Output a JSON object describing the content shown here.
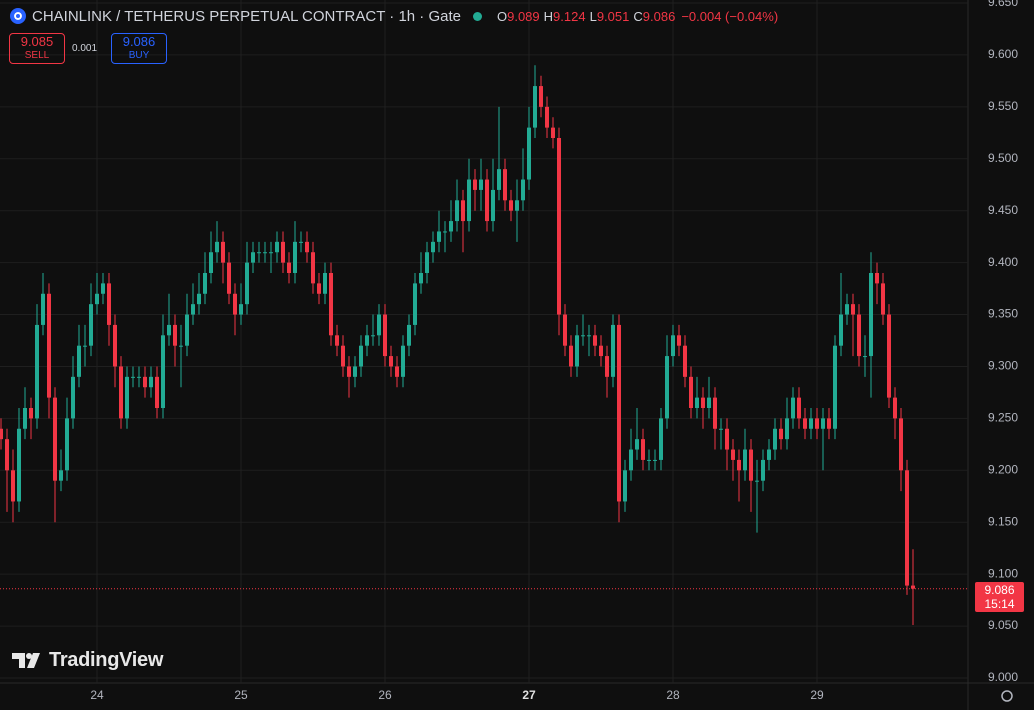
{
  "header": {
    "title": "CHAINLINK / TETHERUS PERPETUAL CONTRACT · 1h · Gate",
    "ohlc_labels": [
      "O",
      "H",
      "L",
      "C"
    ],
    "change": "−0.004 (−0.04%)",
    "sell_price": 9.085,
    "sell_label": "SELL",
    "spread": 0.001,
    "buy_price": 9.086,
    "buy_label": "BUY",
    "countdown": "15:14",
    "logo": "TradingView"
  },
  "chart_data": {
    "type": "candlestick",
    "grid": true,
    "up_color": "#22ab94",
    "down_color": "#f23645",
    "categories": [
      null,
      null,
      null,
      null,
      null,
      null,
      null,
      null,
      null,
      null,
      null,
      null,
      null,
      null,
      null,
      null,
      "24",
      null,
      null,
      null,
      null,
      null,
      null,
      null,
      null,
      null,
      null,
      null,
      null,
      null,
      null,
      null,
      null,
      null,
      null,
      null,
      null,
      null,
      null,
      null,
      "25",
      null,
      null,
      null,
      null,
      null,
      null,
      null,
      null,
      null,
      null,
      null,
      null,
      null,
      null,
      null,
      null,
      null,
      null,
      null,
      null,
      null,
      null,
      null,
      "26",
      null,
      null,
      null,
      null,
      null,
      null,
      null,
      null,
      null,
      null,
      null,
      null,
      null,
      null,
      null,
      null,
      null,
      null,
      null,
      null,
      null,
      null,
      null,
      "27",
      null,
      null,
      null,
      null,
      null,
      null,
      null,
      null,
      null,
      null,
      null,
      null,
      null,
      null,
      null,
      null,
      null,
      null,
      null,
      null,
      null,
      null,
      null,
      "28",
      null,
      null,
      null,
      null,
      null,
      null,
      null,
      null,
      null,
      null,
      null,
      null,
      null,
      null,
      null,
      null,
      null,
      null,
      null,
      null,
      null,
      null,
      null,
      "29",
      null,
      null,
      null,
      null,
      null,
      null,
      null,
      null,
      null,
      null,
      null,
      null,
      null,
      null,
      null,
      null
    ],
    "open": [
      9.24,
      9.23,
      9.2,
      9.17,
      9.24,
      9.26,
      9.25,
      9.34,
      9.37,
      9.27,
      9.19,
      9.2,
      9.25,
      9.29,
      9.32,
      9.32,
      9.36,
      9.37,
      9.38,
      9.34,
      9.3,
      9.25,
      9.29,
      9.29,
      9.29,
      9.28,
      9.29,
      9.26,
      9.33,
      9.34,
      9.32,
      9.32,
      9.35,
      9.36,
      9.37,
      9.39,
      9.41,
      9.42,
      9.4,
      9.37,
      9.35,
      9.36,
      9.4,
      9.41,
      9.41,
      9.41,
      9.41,
      9.42,
      9.4,
      9.39,
      9.42,
      9.42,
      9.41,
      9.38,
      9.37,
      9.39,
      9.33,
      9.32,
      9.3,
      9.29,
      9.3,
      9.32,
      9.33,
      9.33,
      9.35,
      9.31,
      9.3,
      9.29,
      9.32,
      9.34,
      9.38,
      9.39,
      9.41,
      9.42,
      9.43,
      9.43,
      9.44,
      9.46,
      9.44,
      9.48,
      9.47,
      9.48,
      9.44,
      9.47,
      9.49,
      9.46,
      9.45,
      9.46,
      9.48,
      9.53,
      9.57,
      9.55,
      9.53,
      9.52,
      9.35,
      9.32,
      9.3,
      9.33,
      9.33,
      9.33,
      9.32,
      9.31,
      9.29,
      9.34,
      9.17,
      9.2,
      9.22,
      9.23,
      9.21,
      9.21,
      9.21,
      9.25,
      9.31,
      9.33,
      9.32,
      9.29,
      9.26,
      9.27,
      9.26,
      9.27,
      9.24,
      9.24,
      9.22,
      9.21,
      9.2,
      9.22,
      9.19,
      9.19,
      9.21,
      9.22,
      9.24,
      9.23,
      9.25,
      9.27,
      9.25,
      9.24,
      9.25,
      9.24,
      9.25,
      9.24,
      9.32,
      9.35,
      9.36,
      9.35,
      9.31,
      9.31,
      9.39,
      9.38,
      9.35,
      9.27,
      9.25,
      9.2,
      9.089
    ],
    "high": [
      9.25,
      9.24,
      9.22,
      9.26,
      9.28,
      9.27,
      9.36,
      9.39,
      9.38,
      9.28,
      9.22,
      9.27,
      9.31,
      9.34,
      9.34,
      9.38,
      9.39,
      9.39,
      9.39,
      9.35,
      9.31,
      9.3,
      9.3,
      9.3,
      9.3,
      9.3,
      9.3,
      9.35,
      9.37,
      9.35,
      9.34,
      9.37,
      9.38,
      9.39,
      9.41,
      9.43,
      9.44,
      9.43,
      9.41,
      9.38,
      9.38,
      9.42,
      9.42,
      9.42,
      9.42,
      9.42,
      9.43,
      9.43,
      9.41,
      9.44,
      9.43,
      9.43,
      9.42,
      9.39,
      9.4,
      9.4,
      9.34,
      9.33,
      9.31,
      9.31,
      9.33,
      9.34,
      9.35,
      9.36,
      9.36,
      9.32,
      9.31,
      9.33,
      9.35,
      9.39,
      9.41,
      9.42,
      9.43,
      9.45,
      9.44,
      9.46,
      9.48,
      9.47,
      9.5,
      9.49,
      9.5,
      9.49,
      9.5,
      9.55,
      9.5,
      9.47,
      9.48,
      9.51,
      9.55,
      9.59,
      9.58,
      9.56,
      9.54,
      9.53,
      9.36,
      9.33,
      9.34,
      9.35,
      9.34,
      9.34,
      9.33,
      9.32,
      9.35,
      9.35,
      9.21,
      9.24,
      9.26,
      9.24,
      9.22,
      9.22,
      9.26,
      9.33,
      9.34,
      9.34,
      9.33,
      9.3,
      9.29,
      9.28,
      9.29,
      9.28,
      9.25,
      9.25,
      9.23,
      9.22,
      9.24,
      9.23,
      9.21,
      9.22,
      9.23,
      9.25,
      9.25,
      9.27,
      9.28,
      9.28,
      9.26,
      9.26,
      9.26,
      9.26,
      9.26,
      9.33,
      9.39,
      9.37,
      9.37,
      9.36,
      9.33,
      9.41,
      9.4,
      9.39,
      9.36,
      9.28,
      9.26,
      9.21,
      9.124
    ],
    "low": [
      9.22,
      9.16,
      9.15,
      9.16,
      9.23,
      9.23,
      9.24,
      9.33,
      9.25,
      9.15,
      9.18,
      9.19,
      9.24,
      9.28,
      9.3,
      9.31,
      9.35,
      9.36,
      9.32,
      9.28,
      9.24,
      9.24,
      9.28,
      9.28,
      9.27,
      9.27,
      9.25,
      9.25,
      9.32,
      9.3,
      9.28,
      9.31,
      9.34,
      9.35,
      9.36,
      9.38,
      9.4,
      9.38,
      9.36,
      9.33,
      9.34,
      9.35,
      9.39,
      9.4,
      9.4,
      9.39,
      9.4,
      9.39,
      9.38,
      9.38,
      9.41,
      9.4,
      9.37,
      9.36,
      9.36,
      9.32,
      9.31,
      9.29,
      9.27,
      9.28,
      9.29,
      9.31,
      9.32,
      9.32,
      9.3,
      9.29,
      9.28,
      9.28,
      9.31,
      9.33,
      9.37,
      9.38,
      9.4,
      9.41,
      9.41,
      9.42,
      9.43,
      9.41,
      9.43,
      9.45,
      9.45,
      9.43,
      9.43,
      9.46,
      9.45,
      9.44,
      9.42,
      9.45,
      9.47,
      9.52,
      9.54,
      9.52,
      9.51,
      9.33,
      9.31,
      9.29,
      9.29,
      9.32,
      9.31,
      9.31,
      9.3,
      9.27,
      9.28,
      9.15,
      9.16,
      9.19,
      9.21,
      9.2,
      9.2,
      9.2,
      9.2,
      9.24,
      9.3,
      9.31,
      9.28,
      9.25,
      9.25,
      9.24,
      9.25,
      9.22,
      9.22,
      9.2,
      9.19,
      9.17,
      9.19,
      9.16,
      9.14,
      9.18,
      9.2,
      9.21,
      9.22,
      9.22,
      9.24,
      9.24,
      9.23,
      9.23,
      9.23,
      9.2,
      9.23,
      9.23,
      9.31,
      9.34,
      9.31,
      9.3,
      9.29,
      9.27,
      9.36,
      9.34,
      9.26,
      9.23,
      9.18,
      9.08,
      9.051
    ],
    "close": [
      9.23,
      9.2,
      9.17,
      9.24,
      9.26,
      9.25,
      9.34,
      9.37,
      9.27,
      9.19,
      9.2,
      9.25,
      9.29,
      9.32,
      9.32,
      9.36,
      9.37,
      9.38,
      9.34,
      9.3,
      9.25,
      9.29,
      9.29,
      9.29,
      9.28,
      9.29,
      9.26,
      9.33,
      9.34,
      9.32,
      9.32,
      9.35,
      9.36,
      9.37,
      9.39,
      9.41,
      9.42,
      9.4,
      9.37,
      9.35,
      9.36,
      9.4,
      9.41,
      9.41,
      9.41,
      9.41,
      9.42,
      9.4,
      9.39,
      9.42,
      9.42,
      9.41,
      9.38,
      9.37,
      9.39,
      9.33,
      9.32,
      9.3,
      9.29,
      9.3,
      9.32,
      9.33,
      9.33,
      9.35,
      9.31,
      9.3,
      9.29,
      9.32,
      9.34,
      9.38,
      9.39,
      9.41,
      9.42,
      9.43,
      9.43,
      9.44,
      9.46,
      9.44,
      9.48,
      9.47,
      9.48,
      9.44,
      9.47,
      9.49,
      9.46,
      9.45,
      9.46,
      9.48,
      9.53,
      9.57,
      9.55,
      9.53,
      9.52,
      9.35,
      9.32,
      9.3,
      9.33,
      9.33,
      9.33,
      9.32,
      9.31,
      9.29,
      9.34,
      9.17,
      9.2,
      9.22,
      9.23,
      9.21,
      9.21,
      9.21,
      9.25,
      9.31,
      9.33,
      9.32,
      9.29,
      9.26,
      9.27,
      9.26,
      9.27,
      9.24,
      9.24,
      9.22,
      9.21,
      9.2,
      9.22,
      9.19,
      9.19,
      9.21,
      9.22,
      9.24,
      9.23,
      9.25,
      9.27,
      9.25,
      9.24,
      9.25,
      9.24,
      9.25,
      9.24,
      9.32,
      9.35,
      9.36,
      9.35,
      9.31,
      9.31,
      9.39,
      9.38,
      9.35,
      9.27,
      9.25,
      9.2,
      9.089,
      9.086
    ],
    "ylim": [
      9.0,
      9.65
    ],
    "yticks": [
      {
        "value": 9.65,
        "label": "9.650"
      },
      {
        "value": 9.6,
        "label": "9.600"
      },
      {
        "value": 9.55,
        "label": "9.550"
      },
      {
        "value": 9.5,
        "label": "9.500"
      },
      {
        "value": 9.45,
        "label": "9.450"
      },
      {
        "value": 9.4,
        "label": "9.400"
      },
      {
        "value": 9.35,
        "label": "9.350"
      },
      {
        "value": 9.3,
        "label": "9.300"
      },
      {
        "value": 9.25,
        "label": "9.250"
      },
      {
        "value": 9.2,
        "label": "9.200"
      },
      {
        "value": 9.15,
        "label": "9.150"
      },
      {
        "value": 9.1,
        "label": "9.100"
      },
      {
        "value": 9.05,
        "label": "9.050"
      },
      {
        "value": 9.0,
        "label": "9.000"
      }
    ]
  }
}
